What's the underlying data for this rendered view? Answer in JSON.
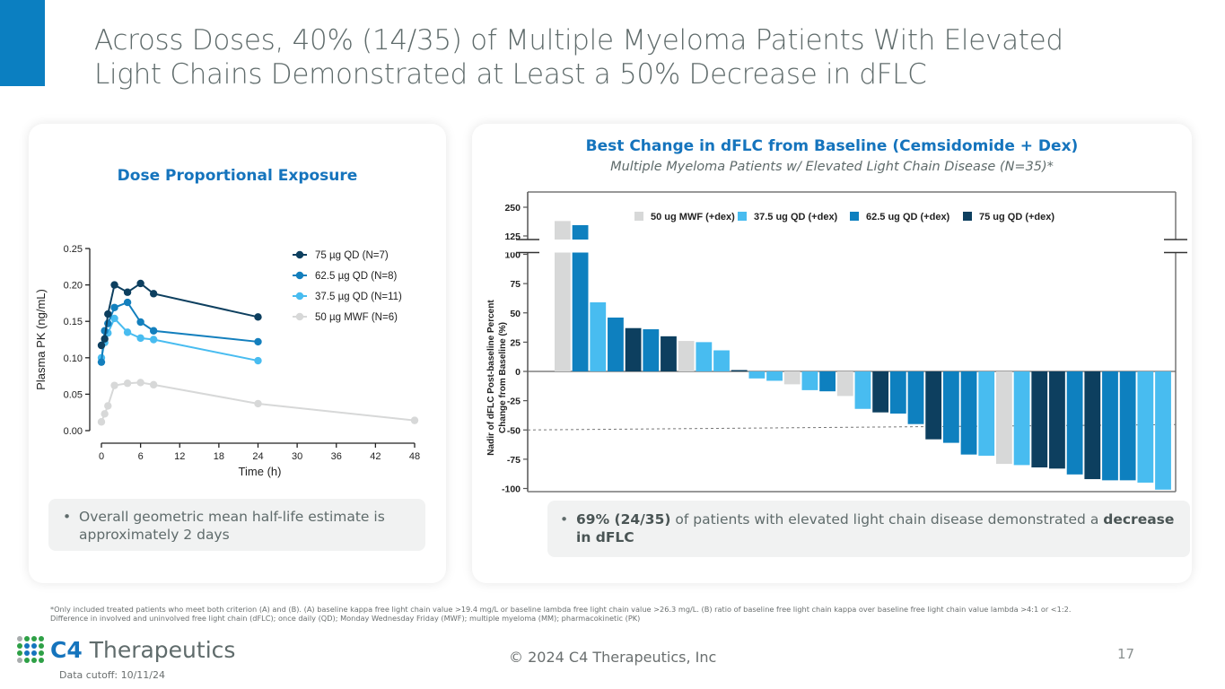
{
  "slide": {
    "title_line1": "Across Doses, 40% (14/35) of Multiple Myeloma Patients With Elevated",
    "title_line2": "Light Chains Demonstrated at Least a 50% Decrease in dFLC",
    "accent_color": "#0b7fc1",
    "page_number": "17",
    "copyright": "© 2024 C4 Therapeutics, Inc",
    "data_cutoff": "Data cutoff: 10/11/24",
    "logo_bold": "C4",
    "logo_rest": " Therapeutics",
    "footnote_line1": "*Only included treated patients who meet both criterion (A) and (B). (A) baseline kappa free light chain value >19.4 mg/L or baseline lambda free light chain value >26.3 mg/L. (B) ratio of baseline free light chain kappa over baseline free light chain value lambda >4:1 or <1:2.",
    "footnote_line2": "Difference in involved and uninvolved free light chain (dFLC); once daily (QD); Monday Wednesday Friday (MWF); multiple myeloma (MM); pharmacokinetic (PK)"
  },
  "left_panel": {
    "heading": "Dose Proportional Exposure",
    "note": "Overall geometric mean half-life estimate is approximately 2 days"
  },
  "right_panel": {
    "heading": "Best Change in dFLC from Baseline (Cemsidomide + Dex)",
    "subheading": "Multiple Myeloma Patients w/ Elevated Light Chain Disease (N=35)*",
    "note_bold1": "69% (24/35)",
    "note_text": " of patients with elevated light chain disease demonstrated a ",
    "note_bold2": "decrease in dFLC"
  },
  "chart_data": [
    {
      "type": "line",
      "title": "Dose Proportional Exposure",
      "xlabel": "Time (h)",
      "ylabel": "Plasma PK (ng/mL)",
      "xlim": [
        0,
        48
      ],
      "ylim": [
        0,
        0.25
      ],
      "xticks": [
        0,
        6,
        12,
        18,
        24,
        30,
        36,
        42,
        48
      ],
      "yticks": [
        "0.00",
        "0.05",
        "0.10",
        "0.15",
        "0.20",
        "0.25"
      ],
      "legend_position": "top-right",
      "series": [
        {
          "name": "75 µg QD (N=7)",
          "color": "#0d3f5f",
          "x": [
            0,
            0.5,
            1,
            2,
            4,
            6,
            8,
            24
          ],
          "y": [
            0.117,
            0.126,
            0.16,
            0.2,
            0.19,
            0.202,
            0.188,
            0.156
          ]
        },
        {
          "name": "62.5 µg QD (N=8)",
          "color": "#137fbd",
          "x": [
            0,
            0.5,
            1,
            2,
            4,
            6,
            8,
            24
          ],
          "y": [
            0.094,
            0.137,
            0.147,
            0.169,
            0.176,
            0.149,
            0.137,
            0.122
          ]
        },
        {
          "name": "37.5 µg QD (N=11)",
          "color": "#48bcf0",
          "x": [
            0,
            0.5,
            1,
            2,
            4,
            6,
            8,
            24
          ],
          "y": [
            0.1,
            0.121,
            0.134,
            0.154,
            0.135,
            0.127,
            0.125,
            0.096
          ]
        },
        {
          "name": "50 µg MWF (N=6)",
          "color": "#d7d8d8",
          "x": [
            0,
            0.5,
            1,
            2,
            4,
            6,
            8,
            24,
            48
          ],
          "y": [
            0.012,
            0.023,
            0.034,
            0.062,
            0.065,
            0.066,
            0.063,
            0.037,
            0.014
          ]
        }
      ]
    },
    {
      "type": "bar",
      "title": "Best Change in dFLC from Baseline (Cemsidomide + Dex)",
      "xlabel": "",
      "ylabel": "Nadir of dFLC Post-baseline Percent Change from Baseline (%)",
      "ylim": [
        -100,
        250
      ],
      "axis_break": [
        100,
        125
      ],
      "yticks": [
        -100,
        -75,
        -50,
        -25,
        0,
        25,
        50,
        75,
        100,
        125,
        250
      ],
      "reference_line": -50,
      "legend_position": "top",
      "legend": [
        {
          "key": "mwf50",
          "name": "50 ug MWF (+dex)",
          "color": "#d7d8d8"
        },
        {
          "key": "qd375",
          "name": "37.5 ug QD (+dex)",
          "color": "#48bcf0"
        },
        {
          "key": "qd625",
          "name": "62.5 ug QD (+dex)",
          "color": "#0e80bf"
        },
        {
          "key": "qd75",
          "name": "75 ug QD (+dex)",
          "color": "#0d3f5f"
        }
      ],
      "bars": [
        {
          "group": "mwf50",
          "value": 190
        },
        {
          "group": "qd625",
          "value": 172
        },
        {
          "group": "qd375",
          "value": 59
        },
        {
          "group": "qd625",
          "value": 46
        },
        {
          "group": "qd75",
          "value": 37
        },
        {
          "group": "qd625",
          "value": 36
        },
        {
          "group": "qd75",
          "value": 30
        },
        {
          "group": "mwf50",
          "value": 26
        },
        {
          "group": "qd375",
          "value": 25
        },
        {
          "group": "qd375",
          "value": 18
        },
        {
          "group": "qd75",
          "value": 1
        },
        {
          "group": "qd375",
          "value": -6
        },
        {
          "group": "qd375",
          "value": -8
        },
        {
          "group": "mwf50",
          "value": -11
        },
        {
          "group": "qd375",
          "value": -16
        },
        {
          "group": "qd625",
          "value": -17
        },
        {
          "group": "mwf50",
          "value": -21
        },
        {
          "group": "qd375",
          "value": -32
        },
        {
          "group": "qd75",
          "value": -35
        },
        {
          "group": "qd625",
          "value": -36
        },
        {
          "group": "qd625",
          "value": -45
        },
        {
          "group": "qd75",
          "value": -58
        },
        {
          "group": "qd625",
          "value": -61
        },
        {
          "group": "qd625",
          "value": -71
        },
        {
          "group": "qd375",
          "value": -72
        },
        {
          "group": "mwf50",
          "value": -79
        },
        {
          "group": "qd375",
          "value": -80
        },
        {
          "group": "qd75",
          "value": -82
        },
        {
          "group": "qd75",
          "value": -83
        },
        {
          "group": "qd625",
          "value": -88
        },
        {
          "group": "qd75",
          "value": -92
        },
        {
          "group": "qd625",
          "value": -93
        },
        {
          "group": "qd625",
          "value": -93
        },
        {
          "group": "qd375",
          "value": -95
        },
        {
          "group": "qd375",
          "value": -101
        }
      ]
    }
  ]
}
